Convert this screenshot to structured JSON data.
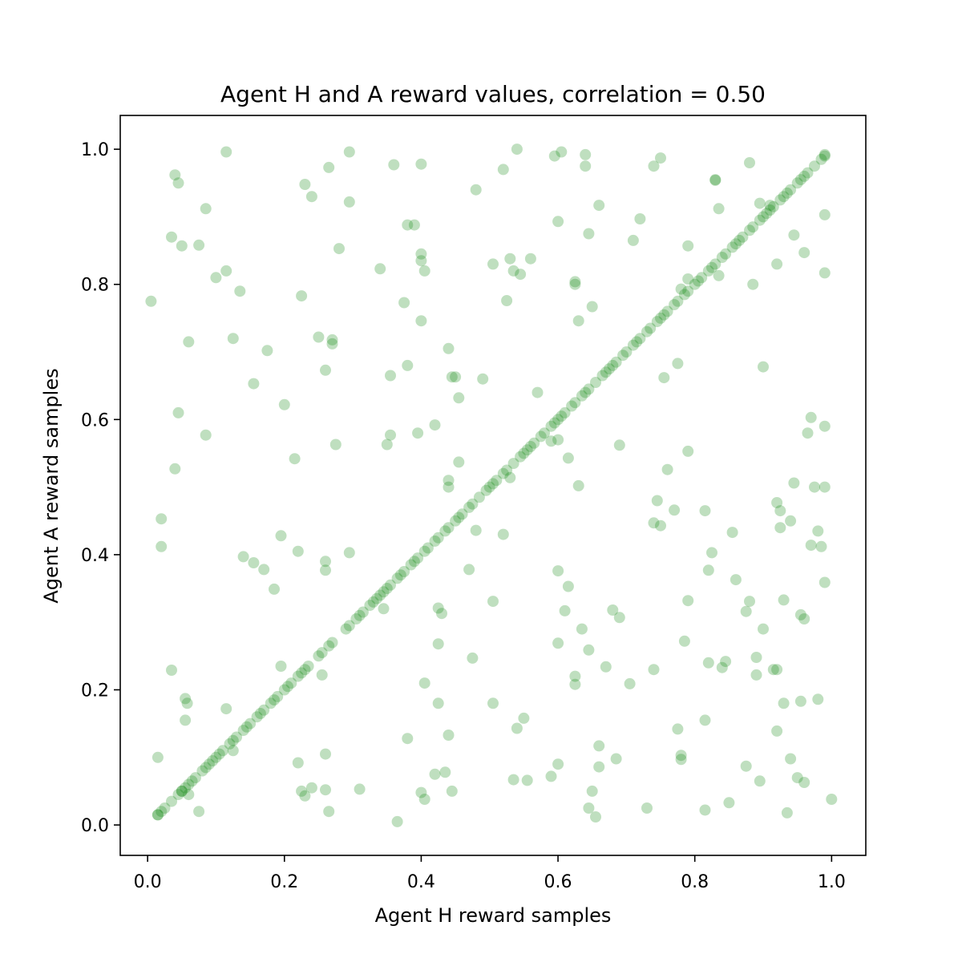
{
  "chart_data": {
    "type": "scatter",
    "title": "Agent H and A reward values, correlation = 0.50",
    "xlabel": "Agent H reward samples",
    "ylabel": "Agent A reward samples",
    "xlim": [
      -0.04,
      1.05
    ],
    "ylim": [
      -0.045,
      1.05
    ],
    "xticks": [
      0.0,
      0.2,
      0.4,
      0.6,
      0.8,
      1.0
    ],
    "yticks": [
      0.0,
      0.2,
      0.4,
      0.6,
      0.8,
      1.0
    ],
    "xtick_labels": [
      "0.0",
      "0.2",
      "0.4",
      "0.6",
      "0.8",
      "1.0"
    ],
    "ytick_labels": [
      "0.0",
      "0.2",
      "0.4",
      "0.6",
      "0.8",
      "1.0"
    ],
    "grid": false,
    "marker_color": "#008000",
    "marker_alpha": 0.25,
    "diagonal_points_x": [
      0.015,
      0.02,
      0.025,
      0.035,
      0.045,
      0.05,
      0.055,
      0.06,
      0.065,
      0.07,
      0.08,
      0.085,
      0.09,
      0.095,
      0.1,
      0.105,
      0.11,
      0.12,
      0.125,
      0.13,
      0.14,
      0.145,
      0.15,
      0.16,
      0.165,
      0.17,
      0.18,
      0.185,
      0.19,
      0.2,
      0.205,
      0.21,
      0.22,
      0.225,
      0.23,
      0.235,
      0.25,
      0.255,
      0.265,
      0.27,
      0.29,
      0.295,
      0.305,
      0.31,
      0.315,
      0.325,
      0.33,
      0.335,
      0.34,
      0.345,
      0.35,
      0.355,
      0.365,
      0.37,
      0.375,
      0.385,
      0.39,
      0.395,
      0.405,
      0.41,
      0.42,
      0.425,
      0.435,
      0.44,
      0.45,
      0.455,
      0.46,
      0.47,
      0.475,
      0.485,
      0.495,
      0.5,
      0.505,
      0.51,
      0.52,
      0.525,
      0.535,
      0.545,
      0.55,
      0.555,
      0.56,
      0.565,
      0.575,
      0.58,
      0.59,
      0.595,
      0.6,
      0.605,
      0.61,
      0.62,
      0.625,
      0.635,
      0.64,
      0.645,
      0.655,
      0.665,
      0.67,
      0.675,
      0.68,
      0.685,
      0.695,
      0.7,
      0.71,
      0.715,
      0.72,
      0.73,
      0.735,
      0.745,
      0.75,
      0.755,
      0.76,
      0.77,
      0.775,
      0.785,
      0.79,
      0.8,
      0.805,
      0.81,
      0.82,
      0.825,
      0.83,
      0.84,
      0.845,
      0.855,
      0.86,
      0.865,
      0.87,
      0.88,
      0.885,
      0.895,
      0.9,
      0.905,
      0.91,
      0.915,
      0.925,
      0.93,
      0.935,
      0.94,
      0.95,
      0.955,
      0.96,
      0.965,
      0.975,
      0.985,
      0.99
    ],
    "scatter_points": [
      [
        0.005,
        0.775
      ],
      [
        0.015,
        0.1
      ],
      [
        0.02,
        0.453
      ],
      [
        0.02,
        0.412
      ],
      [
        0.035,
        0.87
      ],
      [
        0.04,
        0.962
      ],
      [
        0.045,
        0.95
      ],
      [
        0.045,
        0.61
      ],
      [
        0.04,
        0.527
      ],
      [
        0.05,
        0.857
      ],
      [
        0.06,
        0.715
      ],
      [
        0.085,
        0.912
      ],
      [
        0.085,
        0.577
      ],
      [
        0.075,
        0.858
      ],
      [
        0.1,
        0.81
      ],
      [
        0.115,
        0.996
      ],
      [
        0.115,
        0.82
      ],
      [
        0.125,
        0.72
      ],
      [
        0.135,
        0.79
      ],
      [
        0.155,
        0.653
      ],
      [
        0.175,
        0.702
      ],
      [
        0.2,
        0.622
      ],
      [
        0.215,
        0.542
      ],
      [
        0.225,
        0.783
      ],
      [
        0.23,
        0.948
      ],
      [
        0.24,
        0.93
      ],
      [
        0.25,
        0.722
      ],
      [
        0.26,
        0.673
      ],
      [
        0.265,
        0.973
      ],
      [
        0.27,
        0.718
      ],
      [
        0.27,
        0.712
      ],
      [
        0.28,
        0.853
      ],
      [
        0.275,
        0.563
      ],
      [
        0.295,
        0.996
      ],
      [
        0.295,
        0.922
      ],
      [
        0.34,
        0.823
      ],
      [
        0.355,
        0.665
      ],
      [
        0.35,
        0.563
      ],
      [
        0.355,
        0.577
      ],
      [
        0.36,
        0.977
      ],
      [
        0.375,
        0.773
      ],
      [
        0.38,
        0.888
      ],
      [
        0.39,
        0.888
      ],
      [
        0.38,
        0.68
      ],
      [
        0.395,
        0.58
      ],
      [
        0.4,
        0.978
      ],
      [
        0.4,
        0.845
      ],
      [
        0.4,
        0.835
      ],
      [
        0.405,
        0.82
      ],
      [
        0.4,
        0.746
      ],
      [
        0.42,
        0.592
      ],
      [
        0.44,
        0.705
      ],
      [
        0.445,
        0.663
      ],
      [
        0.45,
        0.663
      ],
      [
        0.455,
        0.632
      ],
      [
        0.455,
        0.537
      ],
      [
        0.48,
        0.94
      ],
      [
        0.49,
        0.66
      ],
      [
        0.505,
        0.83
      ],
      [
        0.52,
        0.97
      ],
      [
        0.53,
        0.838
      ],
      [
        0.535,
        0.82
      ],
      [
        0.545,
        0.815
      ],
      [
        0.525,
        0.776
      ],
      [
        0.56,
        0.838
      ],
      [
        0.54,
        1.0
      ],
      [
        0.57,
        0.64
      ],
      [
        0.595,
        0.99
      ],
      [
        0.605,
        0.996
      ],
      [
        0.6,
        0.893
      ],
      [
        0.59,
        0.568
      ],
      [
        0.6,
        0.57
      ],
      [
        0.64,
        0.992
      ],
      [
        0.64,
        0.975
      ],
      [
        0.625,
        0.804
      ],
      [
        0.625,
        0.8
      ],
      [
        0.63,
        0.746
      ],
      [
        0.645,
        0.875
      ],
      [
        0.65,
        0.767
      ],
      [
        0.66,
        0.917
      ],
      [
        0.615,
        0.543
      ],
      [
        0.63,
        0.502
      ],
      [
        0.71,
        0.865
      ],
      [
        0.72,
        0.897
      ],
      [
        0.74,
        0.975
      ],
      [
        0.75,
        0.987
      ],
      [
        0.775,
        0.683
      ],
      [
        0.755,
        0.662
      ],
      [
        0.78,
        0.793
      ],
      [
        0.79,
        0.808
      ],
      [
        0.79,
        0.857
      ],
      [
        0.83,
        0.955
      ],
      [
        0.83,
        0.954
      ],
      [
        0.835,
        0.912
      ],
      [
        0.835,
        0.813
      ],
      [
        0.88,
        0.98
      ],
      [
        0.885,
        0.8
      ],
      [
        0.9,
        0.678
      ],
      [
        0.895,
        0.92
      ],
      [
        0.91,
        0.917
      ],
      [
        0.92,
        0.83
      ],
      [
        0.945,
        0.873
      ],
      [
        0.96,
        0.847
      ],
      [
        0.99,
        0.992
      ],
      [
        0.99,
        0.903
      ],
      [
        0.99,
        0.817
      ],
      [
        0.97,
        0.603
      ],
      [
        0.965,
        0.58
      ],
      [
        0.99,
        0.59
      ],
      [
        0.79,
        0.553
      ],
      [
        0.76,
        0.526
      ],
      [
        0.69,
        0.562
      ],
      [
        0.035,
        0.229
      ],
      [
        0.055,
        0.187
      ],
      [
        0.058,
        0.18
      ],
      [
        0.055,
        0.155
      ],
      [
        0.015,
        0.015
      ],
      [
        0.05,
        0.05
      ],
      [
        0.06,
        0.045
      ],
      [
        0.075,
        0.02
      ],
      [
        0.115,
        0.172
      ],
      [
        0.125,
        0.11
      ],
      [
        0.14,
        0.397
      ],
      [
        0.155,
        0.388
      ],
      [
        0.17,
        0.378
      ],
      [
        0.185,
        0.349
      ],
      [
        0.195,
        0.428
      ],
      [
        0.195,
        0.235
      ],
      [
        0.22,
        0.405
      ],
      [
        0.22,
        0.092
      ],
      [
        0.225,
        0.05
      ],
      [
        0.23,
        0.043
      ],
      [
        0.24,
        0.055
      ],
      [
        0.255,
        0.222
      ],
      [
        0.26,
        0.39
      ],
      [
        0.26,
        0.377
      ],
      [
        0.26,
        0.105
      ],
      [
        0.26,
        0.052
      ],
      [
        0.265,
        0.02
      ],
      [
        0.295,
        0.403
      ],
      [
        0.31,
        0.053
      ],
      [
        0.345,
        0.32
      ],
      [
        0.365,
        0.005
      ],
      [
        0.38,
        0.128
      ],
      [
        0.4,
        0.048
      ],
      [
        0.405,
        0.038
      ],
      [
        0.405,
        0.21
      ],
      [
        0.42,
        0.075
      ],
      [
        0.425,
        0.321
      ],
      [
        0.425,
        0.268
      ],
      [
        0.425,
        0.18
      ],
      [
        0.43,
        0.313
      ],
      [
        0.435,
        0.078
      ],
      [
        0.44,
        0.51
      ],
      [
        0.44,
        0.5
      ],
      [
        0.44,
        0.133
      ],
      [
        0.445,
        0.05
      ],
      [
        0.47,
        0.378
      ],
      [
        0.475,
        0.247
      ],
      [
        0.48,
        0.436
      ],
      [
        0.505,
        0.331
      ],
      [
        0.505,
        0.18
      ],
      [
        0.52,
        0.43
      ],
      [
        0.53,
        0.514
      ],
      [
        0.535,
        0.067
      ],
      [
        0.54,
        0.143
      ],
      [
        0.55,
        0.158
      ],
      [
        0.555,
        0.066
      ],
      [
        0.59,
        0.072
      ],
      [
        0.6,
        0.376
      ],
      [
        0.6,
        0.269
      ],
      [
        0.6,
        0.09
      ],
      [
        0.61,
        0.317
      ],
      [
        0.615,
        0.353
      ],
      [
        0.625,
        0.22
      ],
      [
        0.625,
        0.208
      ],
      [
        0.635,
        0.29
      ],
      [
        0.645,
        0.259
      ],
      [
        0.645,
        0.025
      ],
      [
        0.65,
        0.05
      ],
      [
        0.655,
        0.012
      ],
      [
        0.66,
        0.086
      ],
      [
        0.66,
        0.117
      ],
      [
        0.67,
        0.234
      ],
      [
        0.68,
        0.318
      ],
      [
        0.685,
        0.098
      ],
      [
        0.69,
        0.307
      ],
      [
        0.705,
        0.209
      ],
      [
        0.73,
        0.025
      ],
      [
        0.74,
        0.23
      ],
      [
        0.74,
        0.447
      ],
      [
        0.745,
        0.48
      ],
      [
        0.75,
        0.443
      ],
      [
        0.77,
        0.466
      ],
      [
        0.775,
        0.142
      ],
      [
        0.78,
        0.097
      ],
      [
        0.78,
        0.103
      ],
      [
        0.785,
        0.272
      ],
      [
        0.79,
        0.332
      ],
      [
        0.815,
        0.465
      ],
      [
        0.815,
        0.155
      ],
      [
        0.815,
        0.022
      ],
      [
        0.82,
        0.24
      ],
      [
        0.82,
        0.377
      ],
      [
        0.825,
        0.403
      ],
      [
        0.84,
        0.233
      ],
      [
        0.845,
        0.242
      ],
      [
        0.85,
        0.033
      ],
      [
        0.855,
        0.433
      ],
      [
        0.86,
        0.363
      ],
      [
        0.875,
        0.316
      ],
      [
        0.875,
        0.087
      ],
      [
        0.88,
        0.331
      ],
      [
        0.89,
        0.248
      ],
      [
        0.89,
        0.222
      ],
      [
        0.895,
        0.065
      ],
      [
        0.9,
        0.29
      ],
      [
        0.915,
        0.23
      ],
      [
        0.92,
        0.23
      ],
      [
        0.92,
        0.139
      ],
      [
        0.92,
        0.477
      ],
      [
        0.925,
        0.465
      ],
      [
        0.925,
        0.44
      ],
      [
        0.93,
        0.333
      ],
      [
        0.93,
        0.18
      ],
      [
        0.935,
        0.018
      ],
      [
        0.94,
        0.45
      ],
      [
        0.94,
        0.098
      ],
      [
        0.945,
        0.506
      ],
      [
        0.95,
        0.07
      ],
      [
        0.955,
        0.311
      ],
      [
        0.955,
        0.183
      ],
      [
        0.96,
        0.063
      ],
      [
        0.96,
        0.305
      ],
      [
        0.97,
        0.414
      ],
      [
        0.975,
        0.5
      ],
      [
        0.98,
        0.435
      ],
      [
        0.98,
        0.186
      ],
      [
        0.985,
        0.412
      ],
      [
        0.99,
        0.359
      ],
      [
        0.99,
        0.5
      ],
      [
        1.0,
        0.038
      ]
    ]
  }
}
